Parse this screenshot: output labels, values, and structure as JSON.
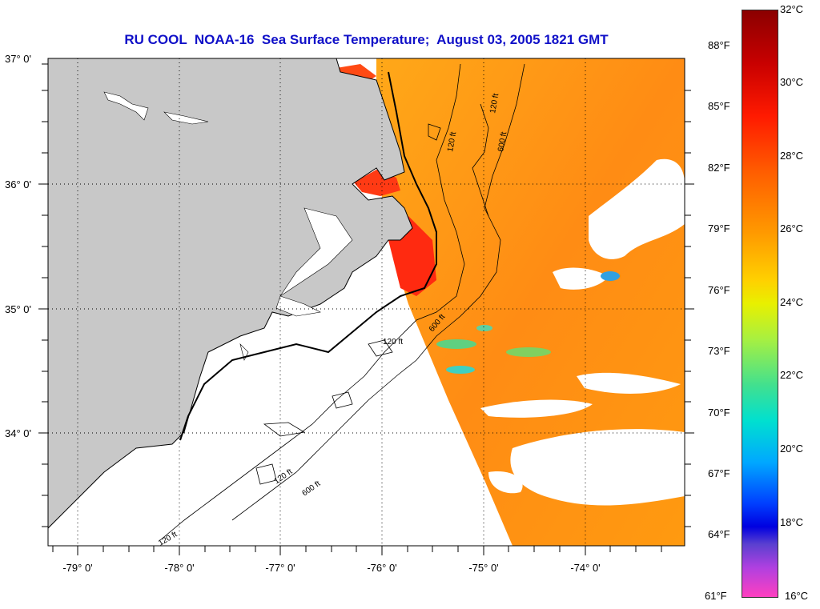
{
  "title": "RU COOL  NOAA-16  Sea Surface Temperature;  August 03, 2005 1821 GMT",
  "lat_labels": [
    "37° 0'",
    "36° 0'",
    "35° 0'",
    "34° 0'"
  ],
  "lon_labels": [
    "-79° 0'",
    "-78° 0'",
    "-77° 0'",
    "-76° 0'",
    "-75° 0'",
    "-74° 0'"
  ],
  "colorbar": {
    "fahrenheit": [
      "88°F",
      "85°F",
      "82°F",
      "79°F",
      "76°F",
      "73°F",
      "70°F",
      "67°F",
      "64°F",
      "61°F"
    ],
    "celsius": [
      "32°C",
      "30°C",
      "28°C",
      "26°C",
      "24°C",
      "22°C",
      "20°C",
      "18°C",
      "16°C"
    ]
  },
  "contour_labels": [
    "120 ft",
    "600 ft",
    "120 ft",
    "600 ft",
    "120 ft",
    "600 ft",
    "120 ft",
    "120 ft"
  ],
  "colors": {
    "title": "#1010c8",
    "land": "#c8c8c8",
    "sst_warm": "#ff9a10",
    "sst_hot": "#ff2a10",
    "cloud": "#ffffff"
  }
}
